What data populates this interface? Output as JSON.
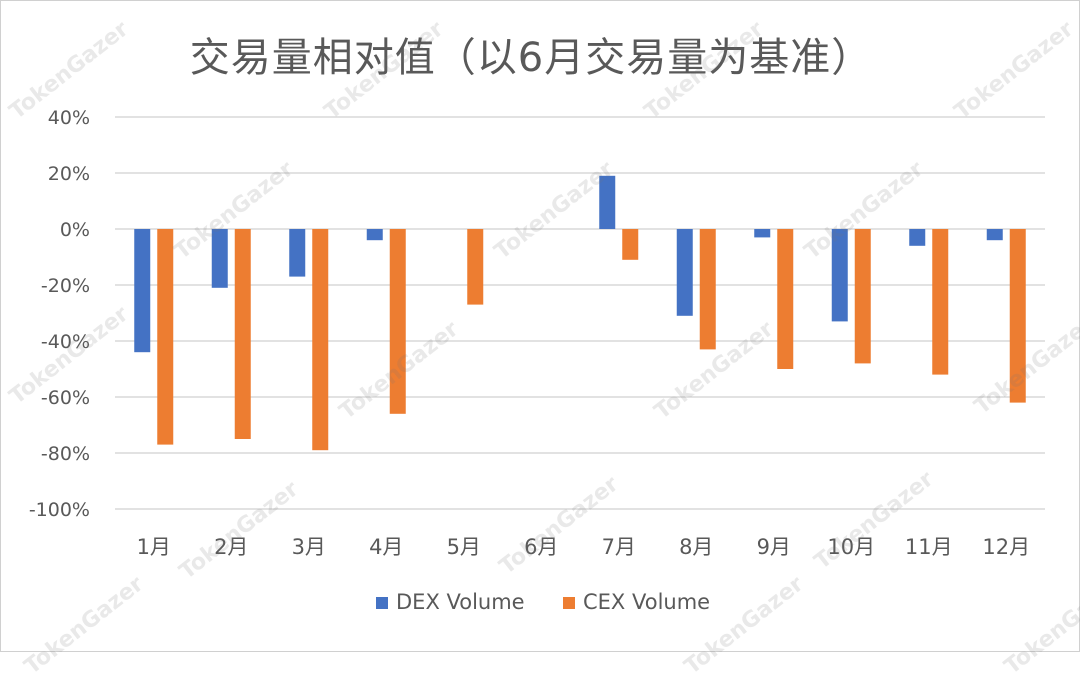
{
  "chart_data": {
    "type": "bar",
    "title": "交易量相对值（以6月交易量为基准）",
    "categories": [
      "1月",
      "2月",
      "3月",
      "4月",
      "5月",
      "6月",
      "7月",
      "8月",
      "9月",
      "10月",
      "11月",
      "12月"
    ],
    "series": [
      {
        "name": "DEX Volume",
        "color": "#4472C4",
        "values": [
          -44,
          -21,
          -17,
          -4,
          0,
          0,
          19,
          -31,
          -3,
          -33,
          -6,
          -4
        ]
      },
      {
        "name": "CEX Volume",
        "color": "#ED7D31",
        "values": [
          -77,
          -75,
          -79,
          -66,
          -27,
          0,
          -11,
          -43,
          -50,
          -48,
          -52,
          -62
        ]
      }
    ],
    "ylim": [
      -100,
      40
    ],
    "yticks": [
      "40%",
      "20%",
      "0%",
      "-20%",
      "-40%",
      "-60%",
      "-80%",
      "-100%"
    ],
    "ytick_values": [
      40,
      20,
      0,
      -20,
      -40,
      -60,
      -80,
      -100
    ],
    "grid": true,
    "legend_position": "bottom",
    "xlabel": "",
    "ylabel": ""
  },
  "watermark": "TokenGazer"
}
